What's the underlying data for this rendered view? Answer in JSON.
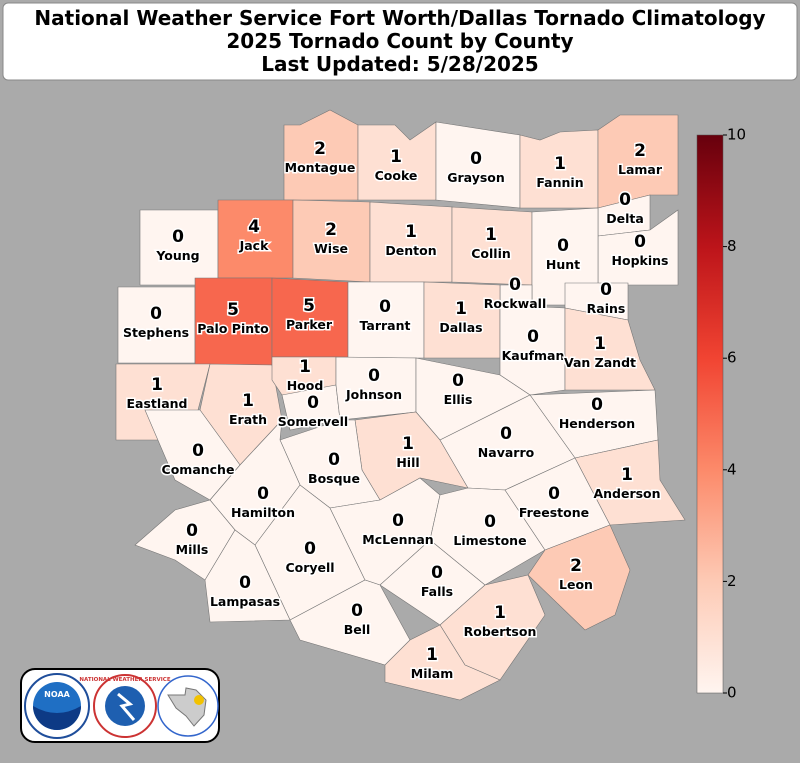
{
  "chart_data": {
    "type": "choropleth",
    "title": "National Weather Service Fort Worth/Dallas Tornado Climatology",
    "subtitle": "2025 Tornado Count by County",
    "updated": "Last Updated: 5/28/2025",
    "counties": [
      {
        "name": "Montague",
        "count": 2
      },
      {
        "name": "Cooke",
        "count": 1
      },
      {
        "name": "Grayson",
        "count": 0
      },
      {
        "name": "Fannin",
        "count": 1
      },
      {
        "name": "Lamar",
        "count": 2
      },
      {
        "name": "Delta",
        "count": 0
      },
      {
        "name": "Hopkins",
        "count": 0
      },
      {
        "name": "Young",
        "count": 0
      },
      {
        "name": "Jack",
        "count": 4
      },
      {
        "name": "Wise",
        "count": 2
      },
      {
        "name": "Denton",
        "count": 1
      },
      {
        "name": "Collin",
        "count": 1
      },
      {
        "name": "Hunt",
        "count": 0
      },
      {
        "name": "Rockwall",
        "count": 0
      },
      {
        "name": "Rains",
        "count": 0
      },
      {
        "name": "Stephens",
        "count": 0
      },
      {
        "name": "Palo Pinto",
        "count": 5
      },
      {
        "name": "Parker",
        "count": 5
      },
      {
        "name": "Tarrant",
        "count": 0
      },
      {
        "name": "Dallas",
        "count": 1
      },
      {
        "name": "Kaufman",
        "count": 0
      },
      {
        "name": "Van Zandt",
        "count": 1
      },
      {
        "name": "Eastland",
        "count": 1
      },
      {
        "name": "Erath",
        "count": 1
      },
      {
        "name": "Hood",
        "count": 1
      },
      {
        "name": "Somervell",
        "count": 0
      },
      {
        "name": "Johnson",
        "count": 0
      },
      {
        "name": "Ellis",
        "count": 0
      },
      {
        "name": "Henderson",
        "count": 0
      },
      {
        "name": "Comanche",
        "count": 0
      },
      {
        "name": "Hill",
        "count": 1
      },
      {
        "name": "Navarro",
        "count": 0
      },
      {
        "name": "Anderson",
        "count": 1
      },
      {
        "name": "Bosque",
        "count": 0
      },
      {
        "name": "Hamilton",
        "count": 0
      },
      {
        "name": "Mills",
        "count": 0
      },
      {
        "name": "Coryell",
        "count": 0
      },
      {
        "name": "McLennan",
        "count": 0
      },
      {
        "name": "Limestone",
        "count": 0
      },
      {
        "name": "Freestone",
        "count": 0
      },
      {
        "name": "Leon",
        "count": 2
      },
      {
        "name": "Lampasas",
        "count": 0
      },
      {
        "name": "Falls",
        "count": 0
      },
      {
        "name": "Bell",
        "count": 0
      },
      {
        "name": "Robertson",
        "count": 1
      },
      {
        "name": "Milam",
        "count": 1
      }
    ],
    "clim": [
      0,
      10
    ],
    "ticks": [
      0,
      2,
      4,
      6,
      8,
      10
    ],
    "colors": [
      "#fff5f0",
      "#fdcab5",
      "#fc8a6a",
      "#f14432",
      "#bc141a",
      "#67000d"
    ],
    "logos": [
      "NOAA",
      "NATIONAL WEATHER SERVICE"
    ]
  }
}
